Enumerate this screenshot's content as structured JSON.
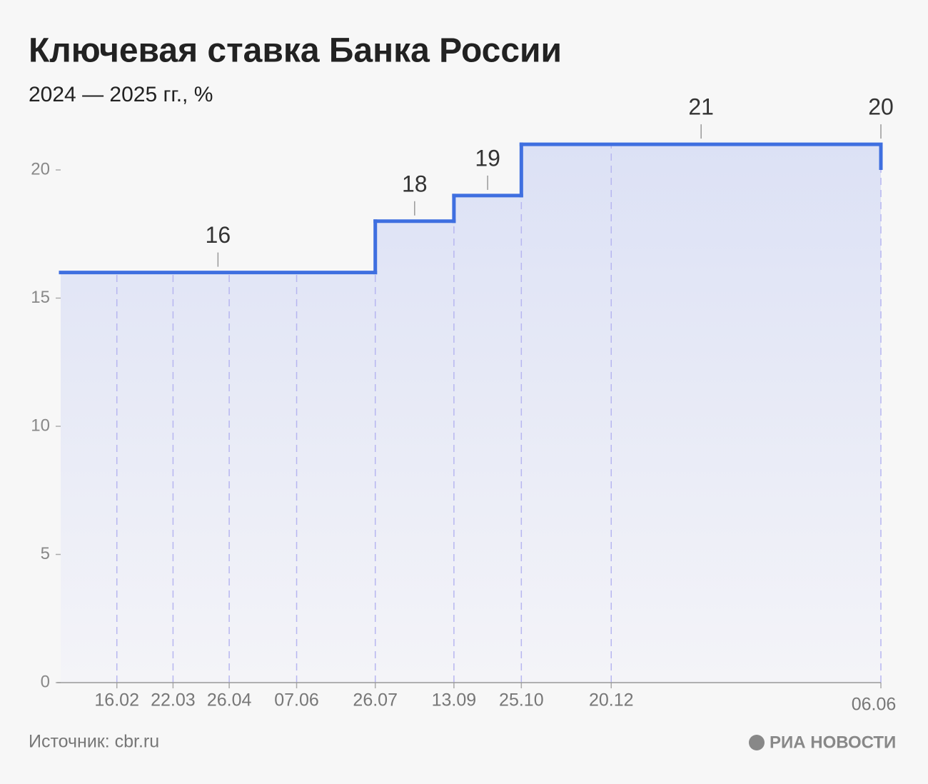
{
  "chart_data": {
    "type": "step",
    "title": "Ключевая ставка Банка России",
    "subtitle": "2024 — 2025 гг., %",
    "source": "Источник: cbr.ru",
    "logo": "РИА НОВОСТИ",
    "x": [
      "2024-01-12",
      "2024-07-26",
      "2024-09-13",
      "2024-10-25",
      "2025-06-06"
    ],
    "values": [
      16,
      18,
      19,
      21,
      20
    ],
    "color": "#3f6fe0",
    "xlim": [
      "2024-01-12",
      "2025-06-06"
    ],
    "xticks": [
      {
        "value": "2024-02-16",
        "label": "16.02"
      },
      {
        "value": "2024-03-22",
        "label": "22.03"
      },
      {
        "value": "2024-04-26",
        "label": "26.04"
      },
      {
        "value": "2024-06-07",
        "label": "07.06"
      },
      {
        "value": "2024-07-26",
        "label": "26.07"
      },
      {
        "value": "2024-09-13",
        "label": "13.09"
      },
      {
        "value": "2024-10-25",
        "label": "25.10"
      },
      {
        "value": "2024-12-20",
        "label": "20.12"
      },
      {
        "value": "2025-06-06",
        "label": "06.06"
      }
    ],
    "ylim": [
      0,
      22
    ],
    "yticks": [
      0,
      5,
      10,
      15,
      20
    ]
  }
}
